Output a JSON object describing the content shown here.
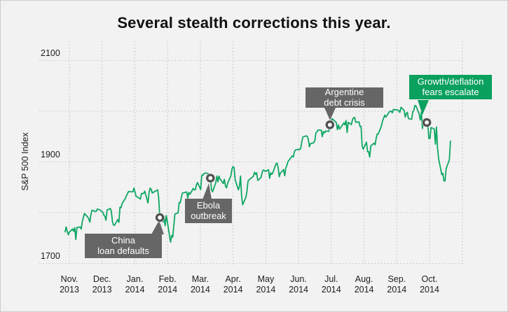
{
  "frame": {
    "background": "#f2f2f2",
    "border_color": "#cccccc"
  },
  "colors": {
    "line": "#0ea763",
    "gray_box": "#666666",
    "green_box": "#0aa05e",
    "grid": "#c8c8c8",
    "marker_ring": "#515151",
    "marker_center": "#ffffff",
    "axis_text": "#1c1c1c",
    "box_text": "#ffffff",
    "title_text": "#111111"
  },
  "chart_data": {
    "type": "line",
    "title": "Several stealth corrections this year.",
    "ylabel": "S&P 500 Index",
    "xlabel": "",
    "ylim": [
      1700,
      2100
    ],
    "y_ticks": [
      1700,
      1800,
      1900,
      2000,
      2100
    ],
    "y_tick_labels": [
      2100,
      1900,
      1700
    ],
    "x_range": [
      "2013-11-01",
      "2014-11-01"
    ],
    "x_tick_labels": [
      [
        "Nov.",
        "2013"
      ],
      [
        "Dec.",
        "2013"
      ],
      [
        "Jan.",
        "2014"
      ],
      [
        "Feb.",
        "2014"
      ],
      [
        "Mar.",
        "2014"
      ],
      [
        "Apr.",
        "2014"
      ],
      [
        "May",
        "2014"
      ],
      [
        "Jun.",
        "2014"
      ],
      [
        "Jul.",
        "2014"
      ],
      [
        "Aug.",
        "2014"
      ],
      [
        "Sep.",
        "2014"
      ],
      [
        "Oct.",
        "2014"
      ]
    ],
    "grid": "dotted",
    "legend": "none",
    "annotations": [
      {
        "lines": [
          "China",
          "loan defaults"
        ],
        "date": "2014-01-24",
        "value": 1790.3,
        "style": "gray"
      },
      {
        "lines": [
          "Ebola",
          "outbreak"
        ],
        "date": "2014-03-12",
        "value": 1868.2,
        "style": "gray"
      },
      {
        "lines": [
          "Argentine",
          "debt crisis"
        ],
        "date": "2014-07-01",
        "value": 1973.3,
        "style": "gray"
      },
      {
        "lines": [
          "Growth/deflation",
          "fears escalate"
        ],
        "date": "2014-09-29",
        "value": 1977.8,
        "style": "green"
      }
    ],
    "series": [
      {
        "name": "S&P 500 Index",
        "color": "#0ea763",
        "points": [
          [
            "2013-10-28",
            1762.1
          ],
          [
            "2013-10-29",
            1771.9
          ],
          [
            "2013-10-30",
            1763.3
          ],
          [
            "2013-10-31",
            1756.5
          ],
          [
            "2013-11-01",
            1761.6
          ],
          [
            "2013-11-04",
            1767.9
          ],
          [
            "2013-11-05",
            1763.0
          ],
          [
            "2013-11-06",
            1770.5
          ],
          [
            "2013-11-07",
            1747.2
          ],
          [
            "2013-11-08",
            1770.6
          ],
          [
            "2013-11-11",
            1771.9
          ],
          [
            "2013-11-12",
            1767.7
          ],
          [
            "2013-11-13",
            1782.0
          ],
          [
            "2013-11-14",
            1790.6
          ],
          [
            "2013-11-15",
            1798.2
          ],
          [
            "2013-11-18",
            1791.5
          ],
          [
            "2013-11-19",
            1787.9
          ],
          [
            "2013-11-20",
            1781.4
          ],
          [
            "2013-11-21",
            1795.9
          ],
          [
            "2013-11-22",
            1804.8
          ],
          [
            "2013-11-25",
            1802.5
          ],
          [
            "2013-11-26",
            1802.8
          ],
          [
            "2013-11-27",
            1807.2
          ],
          [
            "2013-11-29",
            1805.8
          ],
          [
            "2013-12-02",
            1800.9
          ],
          [
            "2013-12-03",
            1795.2
          ],
          [
            "2013-12-04",
            1792.8
          ],
          [
            "2013-12-05",
            1785.0
          ],
          [
            "2013-12-06",
            1805.1
          ],
          [
            "2013-12-09",
            1808.4
          ],
          [
            "2013-12-10",
            1802.6
          ],
          [
            "2013-12-11",
            1782.2
          ],
          [
            "2013-12-12",
            1775.5
          ],
          [
            "2013-12-13",
            1775.3
          ],
          [
            "2013-12-16",
            1786.5
          ],
          [
            "2013-12-17",
            1781.0
          ],
          [
            "2013-12-18",
            1810.7
          ],
          [
            "2013-12-19",
            1809.6
          ],
          [
            "2013-12-20",
            1818.3
          ],
          [
            "2013-12-23",
            1828.0
          ],
          [
            "2013-12-24",
            1833.3
          ],
          [
            "2013-12-26",
            1842.0
          ],
          [
            "2013-12-27",
            1841.4
          ],
          [
            "2013-12-30",
            1841.1
          ],
          [
            "2013-12-31",
            1848.4
          ],
          [
            "2014-01-02",
            1832.0
          ],
          [
            "2014-01-03",
            1831.4
          ],
          [
            "2014-01-06",
            1826.8
          ],
          [
            "2014-01-07",
            1837.9
          ],
          [
            "2014-01-08",
            1837.5
          ],
          [
            "2014-01-09",
            1838.1
          ],
          [
            "2014-01-10",
            1842.4
          ],
          [
            "2014-01-13",
            1819.2
          ],
          [
            "2014-01-14",
            1838.9
          ],
          [
            "2014-01-15",
            1848.4
          ],
          [
            "2014-01-16",
            1845.9
          ],
          [
            "2014-01-17",
            1838.7
          ],
          [
            "2014-01-21",
            1843.8
          ],
          [
            "2014-01-22",
            1844.9
          ],
          [
            "2014-01-23",
            1828.5
          ],
          [
            "2014-01-24",
            1790.3
          ],
          [
            "2014-01-27",
            1781.6
          ],
          [
            "2014-01-28",
            1792.5
          ],
          [
            "2014-01-29",
            1774.2
          ],
          [
            "2014-01-30",
            1794.2
          ],
          [
            "2014-01-31",
            1782.6
          ],
          [
            "2014-02-03",
            1741.9
          ],
          [
            "2014-02-04",
            1755.2
          ],
          [
            "2014-02-05",
            1751.6
          ],
          [
            "2014-02-06",
            1773.4
          ],
          [
            "2014-02-07",
            1797.0
          ],
          [
            "2014-02-10",
            1799.8
          ],
          [
            "2014-02-11",
            1819.8
          ],
          [
            "2014-02-12",
            1819.3
          ],
          [
            "2014-02-13",
            1829.8
          ],
          [
            "2014-02-14",
            1838.6
          ],
          [
            "2014-02-18",
            1840.8
          ],
          [
            "2014-02-19",
            1828.8
          ],
          [
            "2014-02-20",
            1839.8
          ],
          [
            "2014-02-21",
            1836.3
          ],
          [
            "2014-02-24",
            1847.6
          ],
          [
            "2014-02-25",
            1845.1
          ],
          [
            "2014-02-26",
            1845.2
          ],
          [
            "2014-02-27",
            1854.3
          ],
          [
            "2014-02-28",
            1859.5
          ],
          [
            "2014-03-03",
            1845.7
          ],
          [
            "2014-03-04",
            1873.9
          ],
          [
            "2014-03-05",
            1873.8
          ],
          [
            "2014-03-06",
            1877.0
          ],
          [
            "2014-03-07",
            1878.0
          ],
          [
            "2014-03-10",
            1877.2
          ],
          [
            "2014-03-11",
            1867.6
          ],
          [
            "2014-03-12",
            1868.2
          ],
          [
            "2014-03-13",
            1846.3
          ],
          [
            "2014-03-14",
            1841.1
          ],
          [
            "2014-03-17",
            1858.8
          ],
          [
            "2014-03-18",
            1872.3
          ],
          [
            "2014-03-19",
            1860.8
          ],
          [
            "2014-03-20",
            1872.0
          ],
          [
            "2014-03-21",
            1866.5
          ],
          [
            "2014-03-24",
            1857.4
          ],
          [
            "2014-03-25",
            1865.6
          ],
          [
            "2014-03-26",
            1852.6
          ],
          [
            "2014-03-27",
            1849.0
          ],
          [
            "2014-03-28",
            1857.6
          ],
          [
            "2014-03-31",
            1872.3
          ],
          [
            "2014-04-01",
            1885.5
          ],
          [
            "2014-04-02",
            1890.9
          ],
          [
            "2014-04-03",
            1888.8
          ],
          [
            "2014-04-04",
            1865.1
          ],
          [
            "2014-04-07",
            1845.0
          ],
          [
            "2014-04-08",
            1852.0
          ],
          [
            "2014-04-09",
            1872.2
          ],
          [
            "2014-04-10",
            1833.1
          ],
          [
            "2014-04-11",
            1815.7
          ],
          [
            "2014-04-14",
            1830.6
          ],
          [
            "2014-04-15",
            1843.0
          ],
          [
            "2014-04-16",
            1862.3
          ],
          [
            "2014-04-17",
            1864.9
          ],
          [
            "2014-04-21",
            1871.9
          ],
          [
            "2014-04-22",
            1879.6
          ],
          [
            "2014-04-23",
            1875.4
          ],
          [
            "2014-04-24",
            1878.6
          ],
          [
            "2014-04-25",
            1863.4
          ],
          [
            "2014-04-28",
            1869.4
          ],
          [
            "2014-04-29",
            1878.3
          ],
          [
            "2014-04-30",
            1884.0
          ],
          [
            "2014-05-01",
            1883.7
          ],
          [
            "2014-05-02",
            1881.1
          ],
          [
            "2014-05-05",
            1884.7
          ],
          [
            "2014-05-06",
            1867.7
          ],
          [
            "2014-05-07",
            1878.2
          ],
          [
            "2014-05-08",
            1875.6
          ],
          [
            "2014-05-09",
            1878.5
          ],
          [
            "2014-05-12",
            1896.7
          ],
          [
            "2014-05-13",
            1897.5
          ],
          [
            "2014-05-14",
            1888.5
          ],
          [
            "2014-05-15",
            1870.9
          ],
          [
            "2014-05-16",
            1877.9
          ],
          [
            "2014-05-19",
            1885.1
          ],
          [
            "2014-05-20",
            1872.8
          ],
          [
            "2014-05-21",
            1888.0
          ],
          [
            "2014-05-22",
            1892.5
          ],
          [
            "2014-05-23",
            1900.5
          ],
          [
            "2014-05-27",
            1911.9
          ],
          [
            "2014-05-28",
            1909.8
          ],
          [
            "2014-05-29",
            1920.0
          ],
          [
            "2014-05-30",
            1923.6
          ],
          [
            "2014-06-02",
            1925.0
          ],
          [
            "2014-06-03",
            1924.2
          ],
          [
            "2014-06-04",
            1927.9
          ],
          [
            "2014-06-05",
            1940.5
          ],
          [
            "2014-06-06",
            1949.4
          ],
          [
            "2014-06-09",
            1951.3
          ],
          [
            "2014-06-10",
            1950.8
          ],
          [
            "2014-06-11",
            1943.9
          ],
          [
            "2014-06-12",
            1930.1
          ],
          [
            "2014-06-13",
            1936.2
          ],
          [
            "2014-06-16",
            1937.8
          ],
          [
            "2014-06-17",
            1942.0
          ],
          [
            "2014-06-18",
            1957.0
          ],
          [
            "2014-06-19",
            1959.5
          ],
          [
            "2014-06-20",
            1962.9
          ],
          [
            "2014-06-23",
            1962.6
          ],
          [
            "2014-06-24",
            1950.0
          ],
          [
            "2014-06-25",
            1959.9
          ],
          [
            "2014-06-26",
            1957.2
          ],
          [
            "2014-06-27",
            1961.0
          ],
          [
            "2014-06-30",
            1960.2
          ],
          [
            "2014-07-01",
            1973.3
          ],
          [
            "2014-07-02",
            1974.6
          ],
          [
            "2014-07-03",
            1985.4
          ],
          [
            "2014-07-07",
            1977.7
          ],
          [
            "2014-07-08",
            1963.7
          ],
          [
            "2014-07-09",
            1972.8
          ],
          [
            "2014-07-10",
            1964.7
          ],
          [
            "2014-07-11",
            1967.6
          ],
          [
            "2014-07-14",
            1977.1
          ],
          [
            "2014-07-15",
            1973.3
          ],
          [
            "2014-07-16",
            1981.6
          ],
          [
            "2014-07-17",
            1958.1
          ],
          [
            "2014-07-18",
            1978.2
          ],
          [
            "2014-07-21",
            1973.6
          ],
          [
            "2014-07-22",
            1983.5
          ],
          [
            "2014-07-23",
            1987.0
          ],
          [
            "2014-07-24",
            1988.0
          ],
          [
            "2014-07-25",
            1978.3
          ],
          [
            "2014-07-28",
            1978.9
          ],
          [
            "2014-07-29",
            1970.0
          ],
          [
            "2014-07-30",
            1970.1
          ],
          [
            "2014-07-31",
            1930.7
          ],
          [
            "2014-08-01",
            1925.2
          ],
          [
            "2014-08-04",
            1939.0
          ],
          [
            "2014-08-05",
            1920.2
          ],
          [
            "2014-08-06",
            1920.2
          ],
          [
            "2014-08-07",
            1909.6
          ],
          [
            "2014-08-08",
            1931.6
          ],
          [
            "2014-08-11",
            1936.9
          ],
          [
            "2014-08-12",
            1933.8
          ],
          [
            "2014-08-13",
            1946.7
          ],
          [
            "2014-08-14",
            1955.2
          ],
          [
            "2014-08-15",
            1955.1
          ],
          [
            "2014-08-18",
            1971.7
          ],
          [
            "2014-08-19",
            1981.6
          ],
          [
            "2014-08-20",
            1986.5
          ],
          [
            "2014-08-21",
            1992.4
          ],
          [
            "2014-08-22",
            1988.4
          ],
          [
            "2014-08-25",
            1997.9
          ],
          [
            "2014-08-26",
            2000.0
          ],
          [
            "2014-08-27",
            2000.1
          ],
          [
            "2014-08-28",
            1996.7
          ],
          [
            "2014-08-29",
            2003.4
          ],
          [
            "2014-09-02",
            2002.3
          ],
          [
            "2014-09-03",
            2000.7
          ],
          [
            "2014-09-04",
            1997.7
          ],
          [
            "2014-09-05",
            2007.7
          ],
          [
            "2014-09-08",
            2001.5
          ],
          [
            "2014-09-09",
            1988.4
          ],
          [
            "2014-09-10",
            1995.7
          ],
          [
            "2014-09-11",
            1997.5
          ],
          [
            "2014-09-12",
            1985.5
          ],
          [
            "2014-09-15",
            1984.1
          ],
          [
            "2014-09-16",
            1999.0
          ],
          [
            "2014-09-17",
            2001.6
          ],
          [
            "2014-09-18",
            2011.4
          ],
          [
            "2014-09-19",
            2010.4
          ],
          [
            "2014-09-22",
            1994.3
          ],
          [
            "2014-09-23",
            1982.8
          ],
          [
            "2014-09-24",
            1998.3
          ],
          [
            "2014-09-25",
            1966.0
          ],
          [
            "2014-09-26",
            1982.9
          ],
          [
            "2014-09-29",
            1977.8
          ],
          [
            "2014-09-30",
            1972.3
          ],
          [
            "2014-10-01",
            1946.2
          ],
          [
            "2014-10-02",
            1946.2
          ],
          [
            "2014-10-03",
            1967.9
          ],
          [
            "2014-10-06",
            1964.8
          ],
          [
            "2014-10-07",
            1935.1
          ],
          [
            "2014-10-08",
            1968.9
          ],
          [
            "2014-10-09",
            1928.2
          ],
          [
            "2014-10-10",
            1906.1
          ],
          [
            "2014-10-13",
            1874.7
          ],
          [
            "2014-10-14",
            1877.7
          ],
          [
            "2014-10-15",
            1862.5
          ],
          [
            "2014-10-16",
            1862.8
          ],
          [
            "2014-10-17",
            1886.8
          ],
          [
            "2014-10-20",
            1904.0
          ],
          [
            "2014-10-21",
            1941.3
          ]
        ]
      }
    ]
  }
}
